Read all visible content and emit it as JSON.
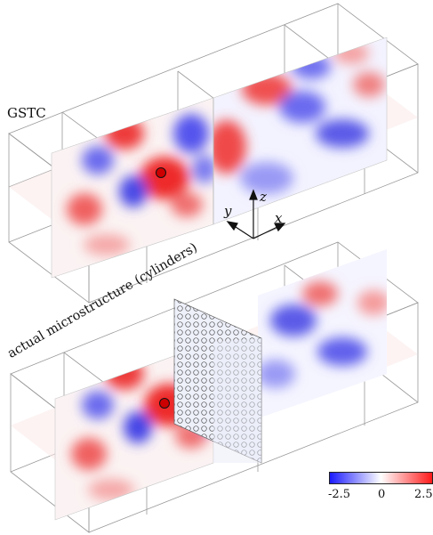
{
  "labels": {
    "top": "GSTC",
    "bottom": "actual microstructure (cylinders)"
  },
  "axes": {
    "z": "z",
    "y": "y",
    "x": "x"
  },
  "colorbar": {
    "min": "-2.5",
    "mid": "0",
    "max": "2.5",
    "colors": [
      "#1a1aff",
      "#ffffff",
      "#ff1a1a"
    ]
  }
}
